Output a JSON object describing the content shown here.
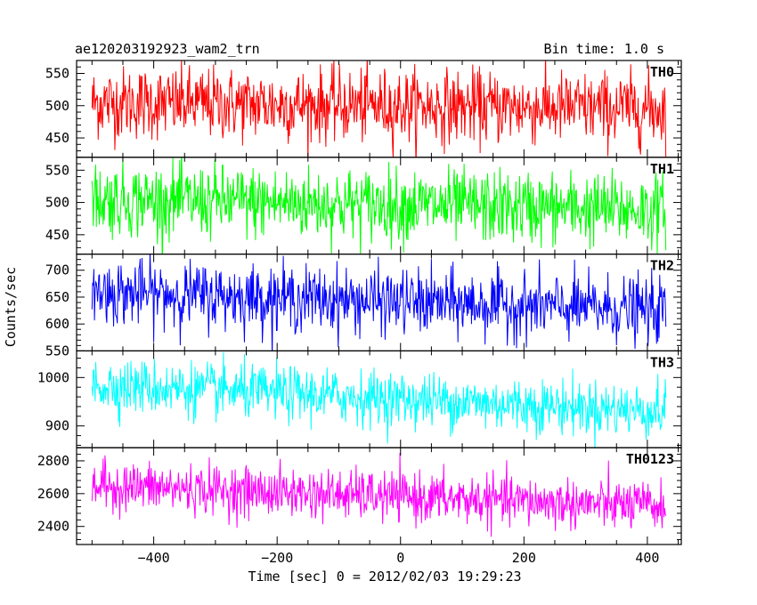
{
  "header": {
    "left": "ae120203192923_wam2_trn",
    "right": "Bin time: 1.0 s"
  },
  "chart_data": {
    "type": "line",
    "ylabel": "Counts/sec",
    "xlabel": "Time [sec] 0 = 2012/02/03 19:29:23",
    "xlim": [
      -525,
      455
    ],
    "xticks": [
      -400,
      -200,
      0,
      200,
      400
    ],
    "bin_time_s": 1.0,
    "panels": [
      {
        "name": "TH0",
        "color": "#ff0000",
        "ylim": [
          420,
          570
        ],
        "yticks": [
          450,
          500,
          550
        ],
        "x_start": -500,
        "x_end": 430,
        "y_start": 505,
        "y_end": 495,
        "spread": 28
      },
      {
        "name": "TH1",
        "color": "#00ff00",
        "ylim": [
          420,
          570
        ],
        "yticks": [
          450,
          500,
          550
        ],
        "x_start": -500,
        "x_end": 430,
        "y_start": 505,
        "y_end": 488,
        "spread": 28
      },
      {
        "name": "TH2",
        "color": "#0000ff",
        "ylim": [
          550,
          730
        ],
        "yticks": [
          550,
          600,
          650,
          700
        ],
        "x_start": -500,
        "x_end": 430,
        "y_start": 660,
        "y_end": 625,
        "spread": 30
      },
      {
        "name": "TH3",
        "color": "#00ffff",
        "ylim": [
          855,
          1055
        ],
        "yticks": [
          900,
          1000
        ],
        "x_start": -500,
        "x_end": 430,
        "y_start": 985,
        "y_end": 930,
        "spread": 28
      },
      {
        "name": "TH0123",
        "color": "#ff00ff",
        "ylim": [
          2290,
          2880
        ],
        "yticks": [
          2400,
          2600,
          2800
        ],
        "x_start": -500,
        "x_end": 430,
        "y_start": 2650,
        "y_end": 2520,
        "spread": 75
      }
    ]
  }
}
